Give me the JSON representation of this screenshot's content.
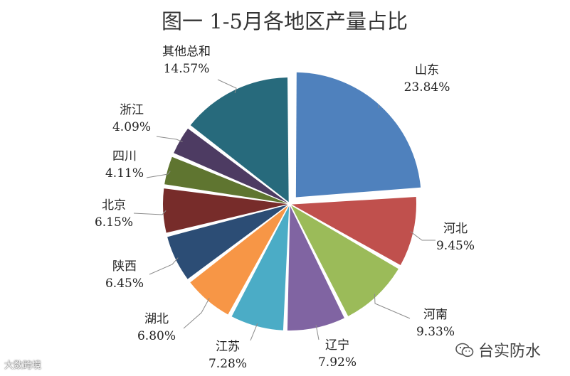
{
  "chart_data": {
    "type": "pie",
    "title": "图一 1-5月各地区产量占比",
    "unit": "%",
    "slices": [
      {
        "name": "山东",
        "value": 23.84,
        "label": "23.84%",
        "color": "#4F81BD",
        "exploded": true
      },
      {
        "name": "河北",
        "value": 9.45,
        "label": "9.45%",
        "color": "#C0504D",
        "exploded": false
      },
      {
        "name": "河南",
        "value": 9.33,
        "label": "9.33%",
        "color": "#9BBB59",
        "exploded": false
      },
      {
        "name": "辽宁",
        "value": 7.92,
        "label": "7.92%",
        "color": "#8064A2",
        "exploded": false
      },
      {
        "name": "江苏",
        "value": 7.28,
        "label": "7.28%",
        "color": "#4BACC6",
        "exploded": false
      },
      {
        "name": "湖北",
        "value": 6.8,
        "label": "6.80%",
        "color": "#F79646",
        "exploded": false
      },
      {
        "name": "陕西",
        "value": 6.45,
        "label": "6.45%",
        "color": "#2C4D75",
        "exploded": false
      },
      {
        "name": "北京",
        "value": 6.15,
        "label": "6.15%",
        "color": "#772C2A",
        "exploded": false
      },
      {
        "name": "四川",
        "value": 4.11,
        "label": "4.11%",
        "color": "#5F7530",
        "exploded": false
      },
      {
        "name": "浙江",
        "value": 4.09,
        "label": "4.09%",
        "color": "#4D3B62",
        "exploded": false
      },
      {
        "name": "其他总和",
        "value": 14.57,
        "label": "14.57%",
        "color": "#276A7C",
        "exploded": false
      }
    ]
  },
  "watermarks": {
    "left": "大数跨境",
    "right": "台实防水",
    "right_icon": "wechat-icon"
  }
}
